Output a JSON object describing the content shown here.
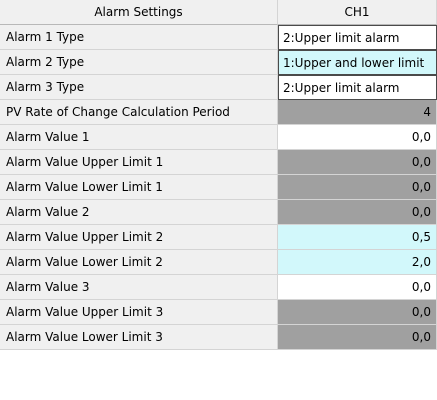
{
  "header": {
    "settings_label": "Alarm Settings",
    "channel_label": "CH1"
  },
  "rows": [
    {
      "label": "Alarm 1 Type",
      "value": "2:Upper limit alarm",
      "bg": "white",
      "align": "text"
    },
    {
      "label": "Alarm 2 Type",
      "value": "1:Upper and lower limit",
      "bg": "cyan",
      "align": "text"
    },
    {
      "label": "Alarm 3 Type",
      "value": "2:Upper limit alarm",
      "bg": "white",
      "align": "text"
    },
    {
      "label": "PV Rate of Change Calculation Period",
      "value": "4",
      "bg": "gray",
      "align": "num"
    },
    {
      "label": "Alarm Value 1",
      "value": "0,0",
      "bg": "white",
      "align": "num"
    },
    {
      "label": "Alarm Value Upper Limit 1",
      "value": "0,0",
      "bg": "gray",
      "align": "num"
    },
    {
      "label": "Alarm Value Lower Limit 1",
      "value": "0,0",
      "bg": "gray",
      "align": "num"
    },
    {
      "label": "Alarm Value 2",
      "value": "0,0",
      "bg": "gray",
      "align": "num"
    },
    {
      "label": "Alarm Value Upper Limit 2",
      "value": "0,5",
      "bg": "cyan",
      "align": "num"
    },
    {
      "label": "Alarm Value Lower Limit 2",
      "value": "2,0",
      "bg": "cyan",
      "align": "num"
    },
    {
      "label": "Alarm Value 3",
      "value": "0,0",
      "bg": "white",
      "align": "num"
    },
    {
      "label": "Alarm Value Upper Limit 3",
      "value": "0,0",
      "bg": "gray",
      "align": "num"
    },
    {
      "label": "Alarm Value Lower Limit 3",
      "value": "0,0",
      "bg": "gray",
      "align": "num"
    }
  ],
  "colors": {
    "label_bg": "#f0f0f0",
    "white_cell": "#ffffff",
    "gray_cell": "#a0a0a0",
    "cyan_cell": "#d2f8fb",
    "grid_line": "#d4d4d4"
  }
}
